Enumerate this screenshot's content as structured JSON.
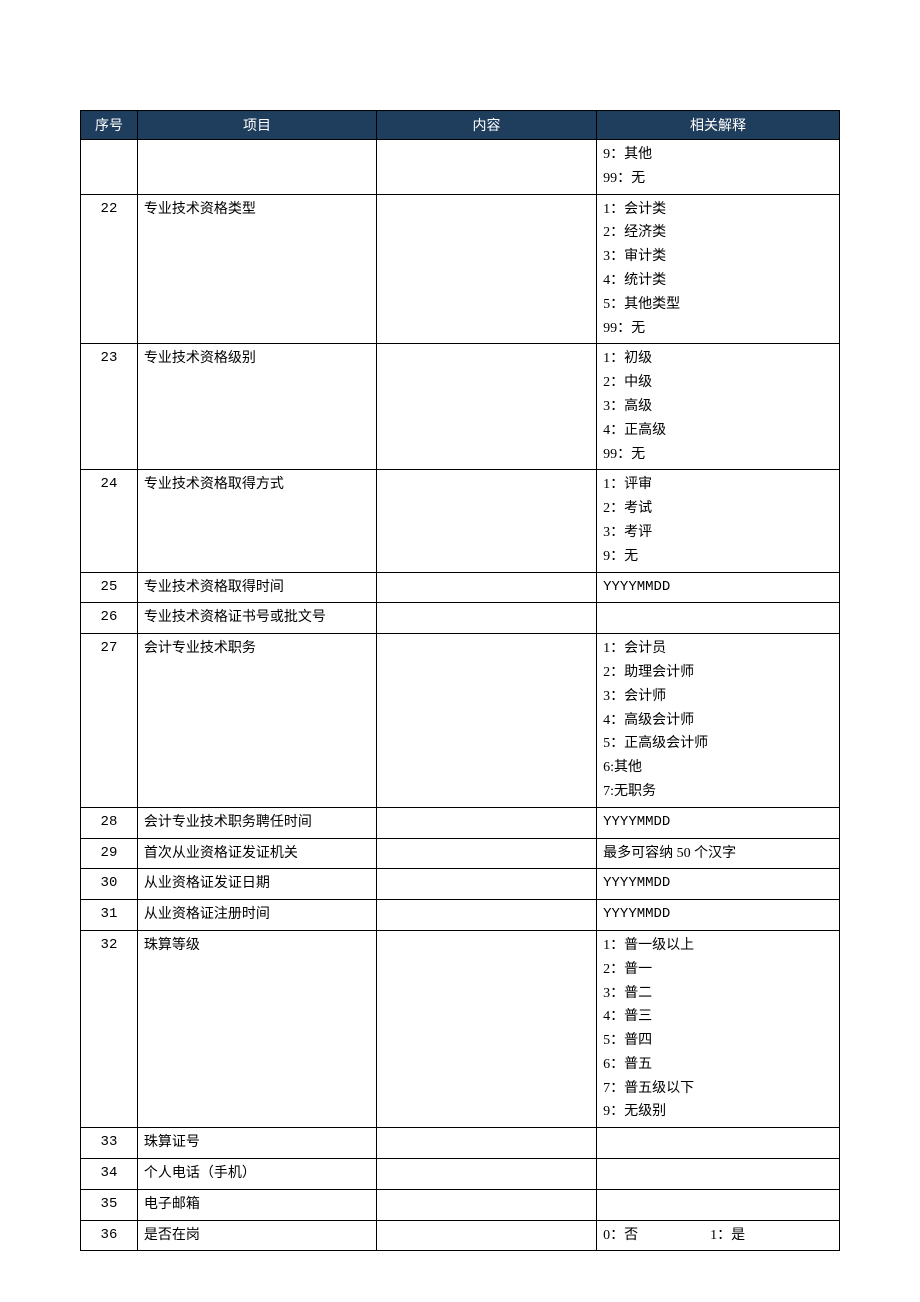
{
  "table": {
    "header_bg": "#1f3d5c",
    "header_fg": "#ffffff",
    "border_color": "#000000",
    "font_family": "SimSun",
    "font_size_pt": 10.5,
    "columns": [
      {
        "key": "seq",
        "label": "序号",
        "width_pct": 7.5,
        "align": "center"
      },
      {
        "key": "item",
        "label": "项目",
        "width_pct": 31.5,
        "align": "center"
      },
      {
        "key": "content",
        "label": "内容",
        "width_pct": 29,
        "align": "center"
      },
      {
        "key": "explain",
        "label": "相关解释",
        "width_pct": 32,
        "align": "center"
      }
    ],
    "rows": [
      {
        "seq": "",
        "item": "",
        "content": "",
        "explain": [
          "9：其他",
          "99：无"
        ]
      },
      {
        "seq": "22",
        "item": "专业技术资格类型",
        "content": "",
        "explain": [
          "1：会计类",
          "2：经济类",
          "3：审计类",
          "4：统计类",
          "5：其他类型",
          "99：无"
        ]
      },
      {
        "seq": "23",
        "item": "专业技术资格级别",
        "content": "",
        "explain": [
          "1：初级",
          "2：中级",
          "3：高级",
          "4：正高级",
          "99：无"
        ]
      },
      {
        "seq": "24",
        "item": "专业技术资格取得方式",
        "content": "",
        "explain": [
          "1：评审",
          "2：考试",
          "3：考评",
          "9：无"
        ]
      },
      {
        "seq": "25",
        "item": "专业技术资格取得时间",
        "content": "",
        "explain": [
          "YYYYMMDD"
        ]
      },
      {
        "seq": "26",
        "item": "专业技术资格证书号或批文号",
        "content": "",
        "explain": []
      },
      {
        "seq": "27",
        "item": "会计专业技术职务",
        "content": "",
        "explain": [
          "1：会计员",
          "2：助理会计师",
          "3：会计师",
          "4：高级会计师",
          "5：正高级会计师",
          "6:其他",
          "7:无职务"
        ]
      },
      {
        "seq": "28",
        "item": "会计专业技术职务聘任时间",
        "content": "",
        "explain": [
          "YYYYMMDD"
        ]
      },
      {
        "seq": "29",
        "item": "首次从业资格证发证机关",
        "content": "",
        "explain": [
          "最多可容纳 50 个汉字"
        ]
      },
      {
        "seq": "30",
        "item": "从业资格证发证日期",
        "content": "",
        "explain": [
          "YYYYMMDD"
        ]
      },
      {
        "seq": "31",
        "item": "从业资格证注册时间",
        "content": "",
        "explain": [
          "YYYYMMDD"
        ]
      },
      {
        "seq": "32",
        "item": "珠算等级",
        "content": "",
        "explain": [
          "1：普一级以上",
          "2：普一",
          "3：普二",
          "4：普三",
          "5：普四",
          "6：普五",
          "7：普五级以下",
          "9：无级别"
        ]
      },
      {
        "seq": "33",
        "item": "珠算证号",
        "content": "",
        "explain": []
      },
      {
        "seq": "34",
        "item": "个人电话（手机）",
        "content": "",
        "explain": []
      },
      {
        "seq": "35",
        "item": "电子邮箱",
        "content": "",
        "explain": []
      },
      {
        "seq": "36",
        "item": "是否在岗",
        "content": "",
        "explain_inline": [
          "0：否",
          "1：是"
        ]
      }
    ]
  }
}
